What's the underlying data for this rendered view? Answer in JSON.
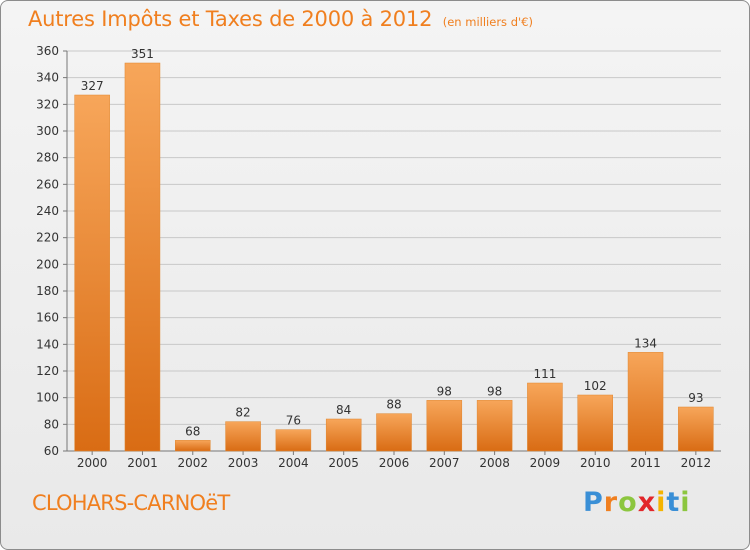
{
  "colors": {
    "accent": "#f07f1f",
    "bar_light": "#f7a65a",
    "bar_dark": "#d96c14",
    "axis_text": "#333333",
    "grid": "#c8c8c8"
  },
  "header": {
    "title": "Autres Impôts et Taxes de 2000 à 2012",
    "subtitle": "(en milliers d'€)"
  },
  "footer": {
    "commune": "CLOHARS-CARNOëT",
    "brand_letters": [
      "P",
      "r",
      "o",
      "x",
      "i",
      "t",
      "i"
    ],
    "brand_colors": [
      "#3a8fd6",
      "#f07f1f",
      "#8cc63f",
      "#e2262a",
      "#f5b400",
      "#3a8fd6",
      "#8cc63f"
    ]
  },
  "chart_data": {
    "type": "bar",
    "categories": [
      "2000",
      "2001",
      "2002",
      "2003",
      "2004",
      "2005",
      "2006",
      "2007",
      "2008",
      "2009",
      "2010",
      "2011",
      "2012"
    ],
    "values": [
      327,
      351,
      68,
      82,
      76,
      84,
      88,
      98,
      98,
      111,
      102,
      134,
      93
    ],
    "ylim": [
      60,
      360
    ],
    "yticks": [
      60,
      80,
      100,
      120,
      140,
      160,
      180,
      200,
      220,
      240,
      260,
      280,
      300,
      320,
      340,
      360
    ],
    "grid": true,
    "data_labels": true
  }
}
